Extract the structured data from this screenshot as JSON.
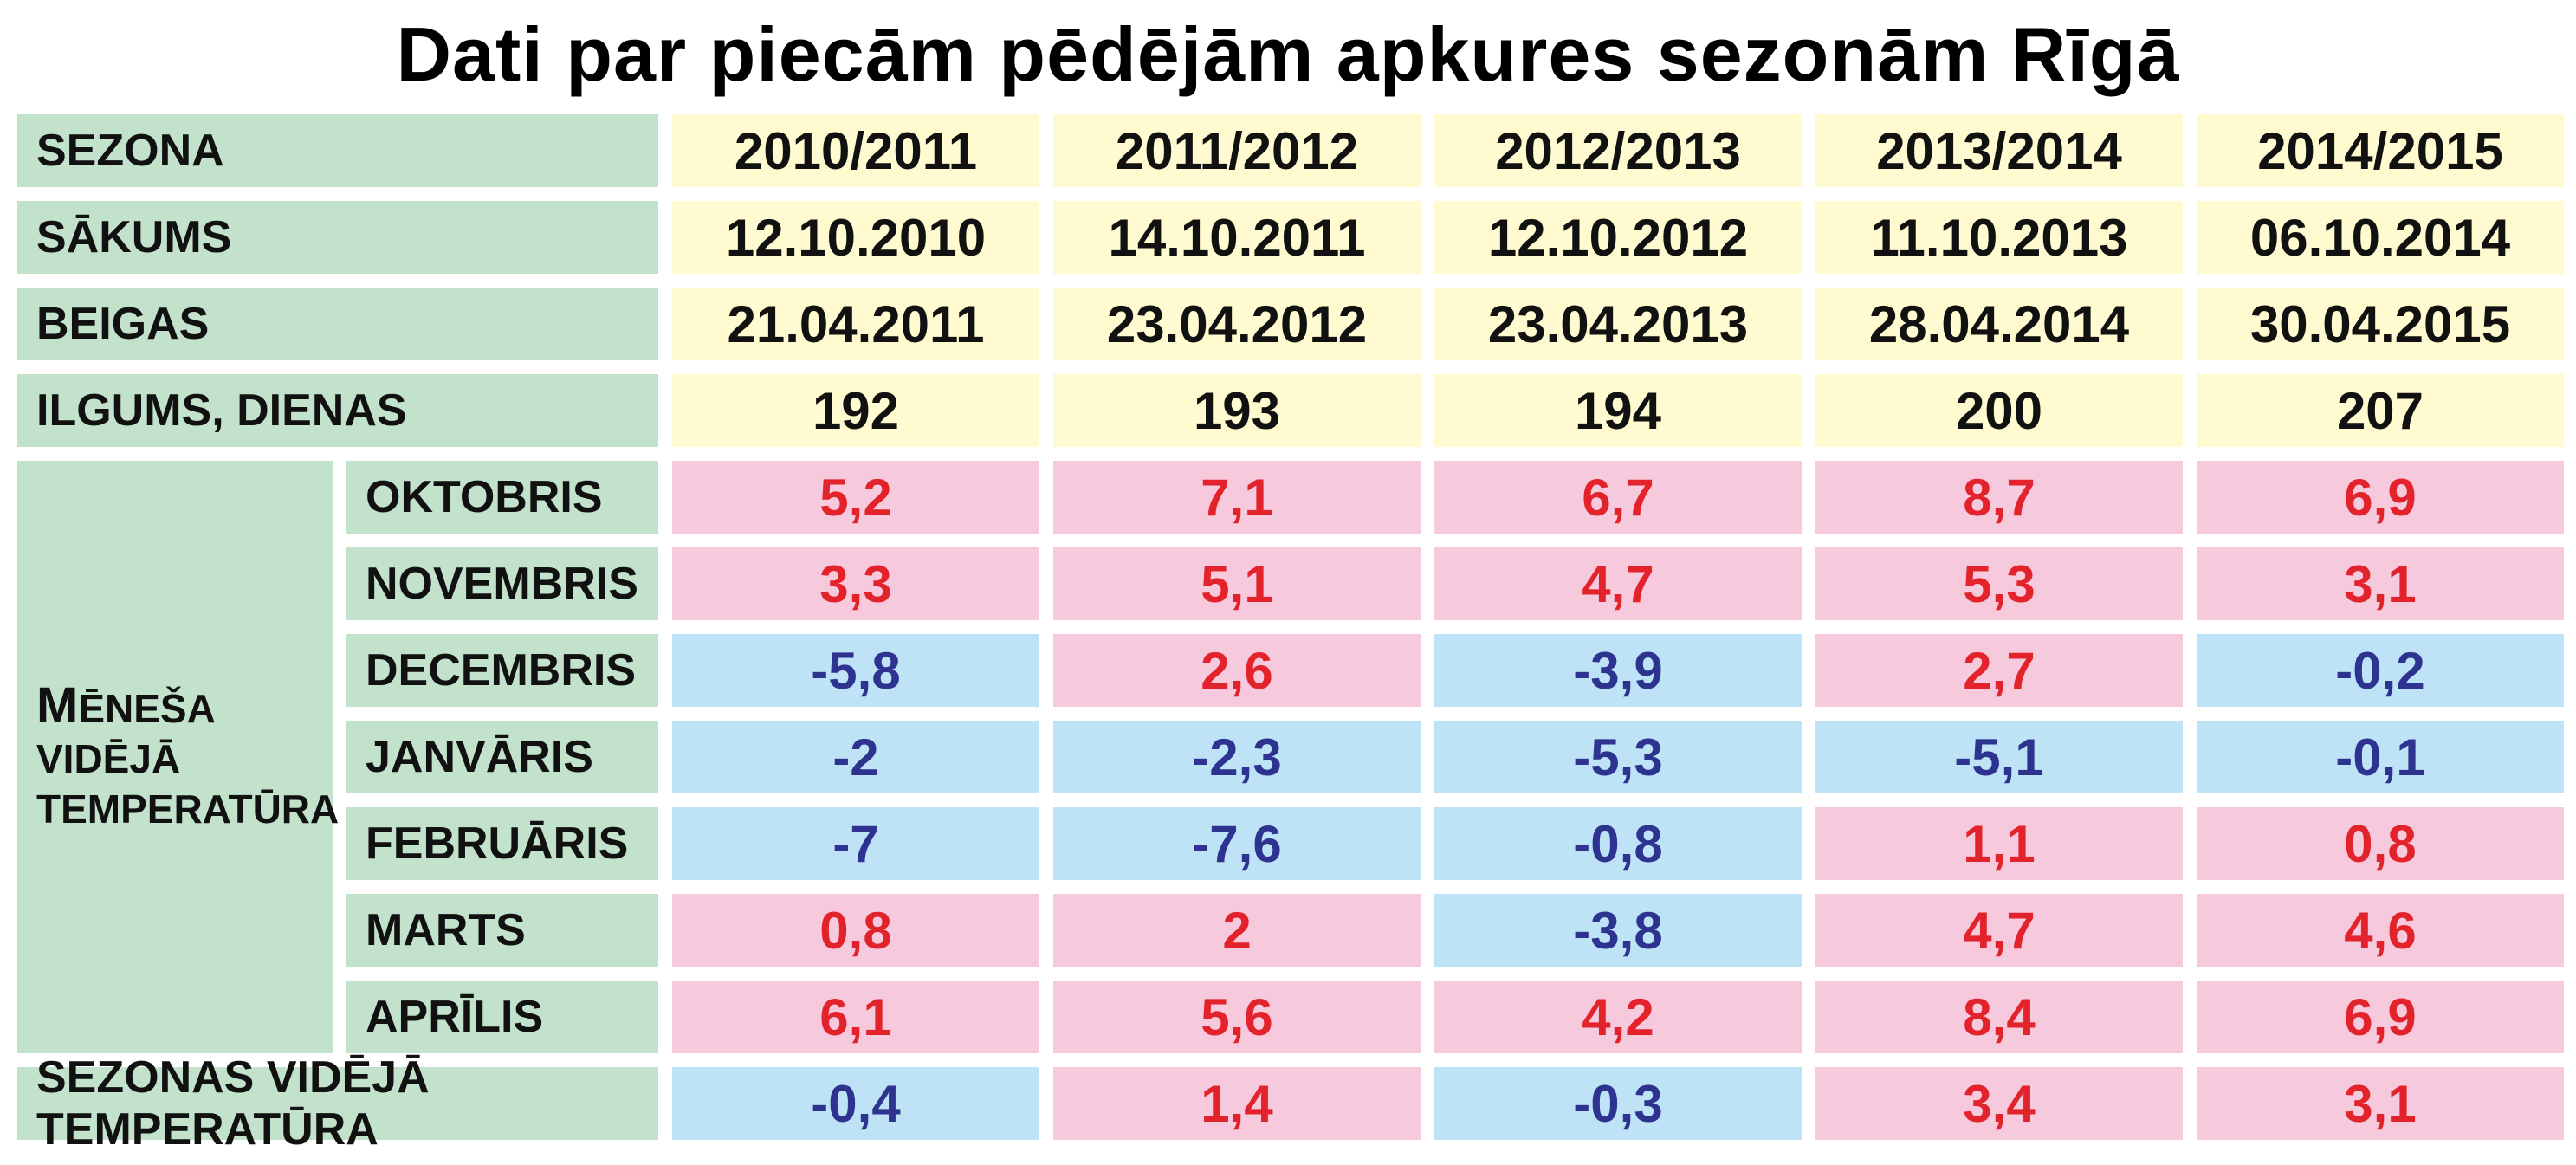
{
  "chart_data": {
    "type": "table",
    "title": "Dati par piecām pēdējām apkures sezonām Rīgā",
    "seasons": [
      "2010/2011",
      "2011/2012",
      "2012/2013",
      "2013/2014",
      "2014/2015"
    ],
    "rows": [
      {
        "label": "Sezona",
        "cells": [
          {
            "text": "2010/2011",
            "tone": "yellow"
          },
          {
            "text": "2011/2012",
            "tone": "yellow"
          },
          {
            "text": "2012/2013",
            "tone": "yellow"
          },
          {
            "text": "2013/2014",
            "tone": "yellow"
          },
          {
            "text": "2014/2015",
            "tone": "yellow"
          }
        ]
      },
      {
        "label": "Sākums",
        "cells": [
          {
            "text": "12.10.2010",
            "tone": "yellow"
          },
          {
            "text": "14.10.2011",
            "tone": "yellow"
          },
          {
            "text": "12.10.2012",
            "tone": "yellow"
          },
          {
            "text": "11.10.2013",
            "tone": "yellow"
          },
          {
            "text": "06.10.2014",
            "tone": "yellow"
          }
        ]
      },
      {
        "label": "Beigas",
        "cells": [
          {
            "text": "21.04.2011",
            "tone": "yellow"
          },
          {
            "text": "23.04.2012",
            "tone": "yellow"
          },
          {
            "text": "23.04.2013",
            "tone": "yellow"
          },
          {
            "text": "28.04.2014",
            "tone": "yellow"
          },
          {
            "text": "30.04.2015",
            "tone": "yellow"
          }
        ]
      },
      {
        "label": "Ilgums, dienas",
        "cells": [
          {
            "text": "192",
            "tone": "yellow"
          },
          {
            "text": "193",
            "tone": "yellow"
          },
          {
            "text": "194",
            "tone": "yellow"
          },
          {
            "text": "200",
            "tone": "yellow"
          },
          {
            "text": "207",
            "tone": "yellow"
          }
        ]
      }
    ],
    "group": {
      "label_lines": [
        "Mēneša",
        "vidējā",
        "temperatūra"
      ],
      "months": [
        {
          "label": "Oktobris",
          "cells": [
            {
              "text": "5,2",
              "tone": "pink"
            },
            {
              "text": "7,1",
              "tone": "pink"
            },
            {
              "text": "6,7",
              "tone": "pink"
            },
            {
              "text": "8,7",
              "tone": "pink"
            },
            {
              "text": "6,9",
              "tone": "pink"
            }
          ]
        },
        {
          "label": "Novembris",
          "cells": [
            {
              "text": "3,3",
              "tone": "pink"
            },
            {
              "text": "5,1",
              "tone": "pink"
            },
            {
              "text": "4,7",
              "tone": "pink"
            },
            {
              "text": "5,3",
              "tone": "pink"
            },
            {
              "text": "3,1",
              "tone": "pink"
            }
          ]
        },
        {
          "label": "Decembris",
          "cells": [
            {
              "text": "-5,8",
              "tone": "blue"
            },
            {
              "text": "2,6",
              "tone": "pink"
            },
            {
              "text": "-3,9",
              "tone": "blue"
            },
            {
              "text": "2,7",
              "tone": "pink"
            },
            {
              "text": "-0,2",
              "tone": "blue"
            }
          ]
        },
        {
          "label": "Janvāris",
          "cells": [
            {
              "text": "-2",
              "tone": "blue"
            },
            {
              "text": "-2,3",
              "tone": "blue"
            },
            {
              "text": "-5,3",
              "tone": "blue"
            },
            {
              "text": "-5,1",
              "tone": "blue"
            },
            {
              "text": "-0,1",
              "tone": "blue"
            }
          ]
        },
        {
          "label": "Februāris",
          "cells": [
            {
              "text": "-7",
              "tone": "blue"
            },
            {
              "text": "-7,6",
              "tone": "blue"
            },
            {
              "text": "-0,8",
              "tone": "blue"
            },
            {
              "text": "1,1",
              "tone": "pink"
            },
            {
              "text": "0,8",
              "tone": "pink"
            }
          ]
        },
        {
          "label": "Marts",
          "cells": [
            {
              "text": "0,8",
              "tone": "pink"
            },
            {
              "text": "2",
              "tone": "pink"
            },
            {
              "text": "-3,8",
              "tone": "blue"
            },
            {
              "text": "4,7",
              "tone": "pink"
            },
            {
              "text": "4,6",
              "tone": "pink"
            }
          ]
        },
        {
          "label": "Aprīlis",
          "cells": [
            {
              "text": "6,1",
              "tone": "pink"
            },
            {
              "text": "5,6",
              "tone": "pink"
            },
            {
              "text": "4,2",
              "tone": "pink"
            },
            {
              "text": "8,4",
              "tone": "pink"
            },
            {
              "text": "6,9",
              "tone": "pink"
            }
          ]
        }
      ]
    },
    "summary": {
      "label": "Sezonas vidējā temperatūra",
      "cells": [
        {
          "text": "-0,4",
          "tone": "blue"
        },
        {
          "text": "1,4",
          "tone": "pink"
        },
        {
          "text": "-0,3",
          "tone": "blue"
        },
        {
          "text": "3,4",
          "tone": "pink"
        },
        {
          "text": "3,1",
          "tone": "pink"
        }
      ]
    },
    "colors": {
      "label_bg": "#c2e2cc",
      "yellow_bg": "#fffacf",
      "pink_bg": "#f7c9dd",
      "pink_text": "#e3232b",
      "blue_bg": "#bee3f7",
      "blue_text": "#2f3390"
    }
  }
}
